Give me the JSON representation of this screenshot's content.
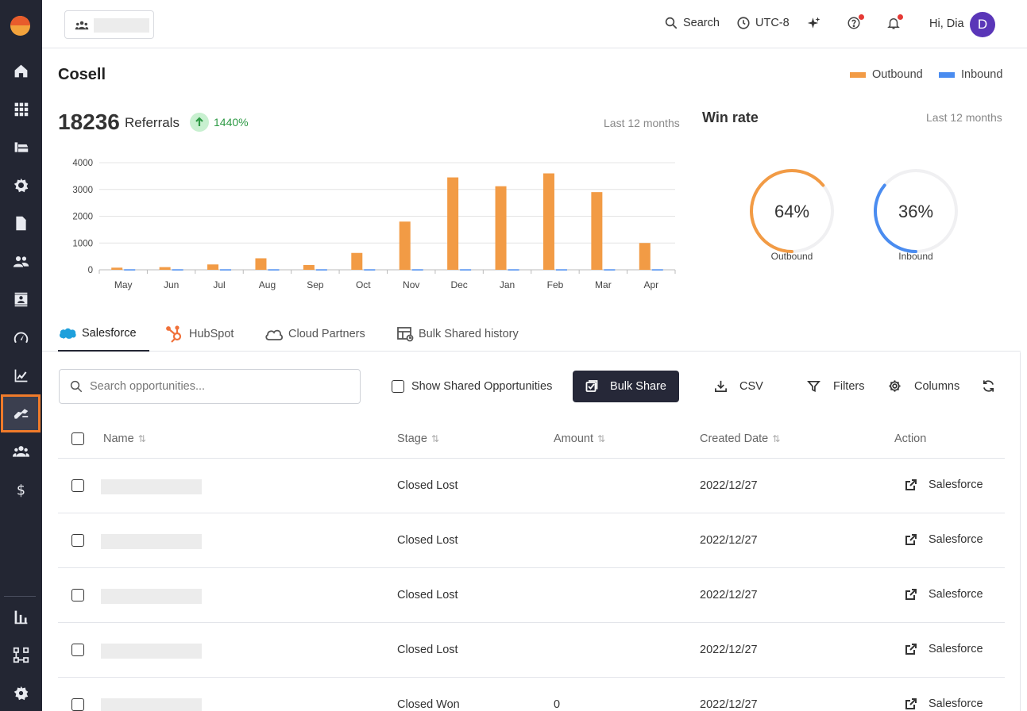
{
  "topbar": {
    "search_label": "Search",
    "timezone_label": "UTC-8",
    "greeting": "Hi, Dia",
    "avatar_initial": "D"
  },
  "page": {
    "title": "Cosell"
  },
  "legend": {
    "outbound_label": "Outbound",
    "inbound_label": "Inbound",
    "outbound_color": "#f29b45",
    "inbound_color": "#4a8cf0"
  },
  "referrals": {
    "count": "18236",
    "label": "Referrals",
    "growth": "1440%",
    "period": "Last 12 months"
  },
  "chart_data": {
    "type": "bar",
    "categories": [
      "May",
      "Jun",
      "Jul",
      "Aug",
      "Sep",
      "Oct",
      "Nov",
      "Dec",
      "Jan",
      "Feb",
      "Mar",
      "Apr"
    ],
    "series": [
      {
        "name": "Outbound",
        "values": [
          80,
          100,
          200,
          430,
          180,
          630,
          1800,
          3450,
          3120,
          3600,
          2900,
          1000
        ]
      },
      {
        "name": "Inbound",
        "values": [
          20,
          20,
          20,
          20,
          20,
          20,
          20,
          20,
          20,
          20,
          20,
          20
        ]
      }
    ],
    "yticks": [
      "0",
      "1000",
      "2000",
      "3000",
      "4000"
    ],
    "ylim": [
      0,
      4000
    ],
    "grid": true
  },
  "win_rate": {
    "title": "Win rate",
    "period": "Last 12 months",
    "outbound": {
      "value": 64,
      "text": "64%",
      "label": "Outbound"
    },
    "inbound": {
      "value": 36,
      "text": "36%",
      "label": "Inbound"
    }
  },
  "tabs": [
    {
      "label": "Salesforce"
    },
    {
      "label": "HubSpot"
    },
    {
      "label": "Cloud Partners"
    },
    {
      "label": "Bulk Shared history"
    }
  ],
  "toolbar": {
    "search_placeholder": "Search opportunities...",
    "show_shared_label": "Show Shared Opportunities",
    "bulk_share_label": "Bulk Share",
    "csv_label": "CSV",
    "filters_label": "Filters",
    "columns_label": "Columns"
  },
  "table": {
    "headers": {
      "name": "Name",
      "stage": "Stage",
      "amount": "Amount",
      "created": "Created Date",
      "action": "Action"
    },
    "rows": [
      {
        "stage": "Closed Lost",
        "amount": "",
        "created": "2022/12/27",
        "action": "Salesforce"
      },
      {
        "stage": "Closed Lost",
        "amount": "",
        "created": "2022/12/27",
        "action": "Salesforce"
      },
      {
        "stage": "Closed Lost",
        "amount": "",
        "created": "2022/12/27",
        "action": "Salesforce"
      },
      {
        "stage": "Closed Lost",
        "amount": "",
        "created": "2022/12/27",
        "action": "Salesforce"
      },
      {
        "stage": "Closed Won",
        "amount": "0",
        "created": "2022/12/27",
        "action": "Salesforce"
      }
    ]
  }
}
